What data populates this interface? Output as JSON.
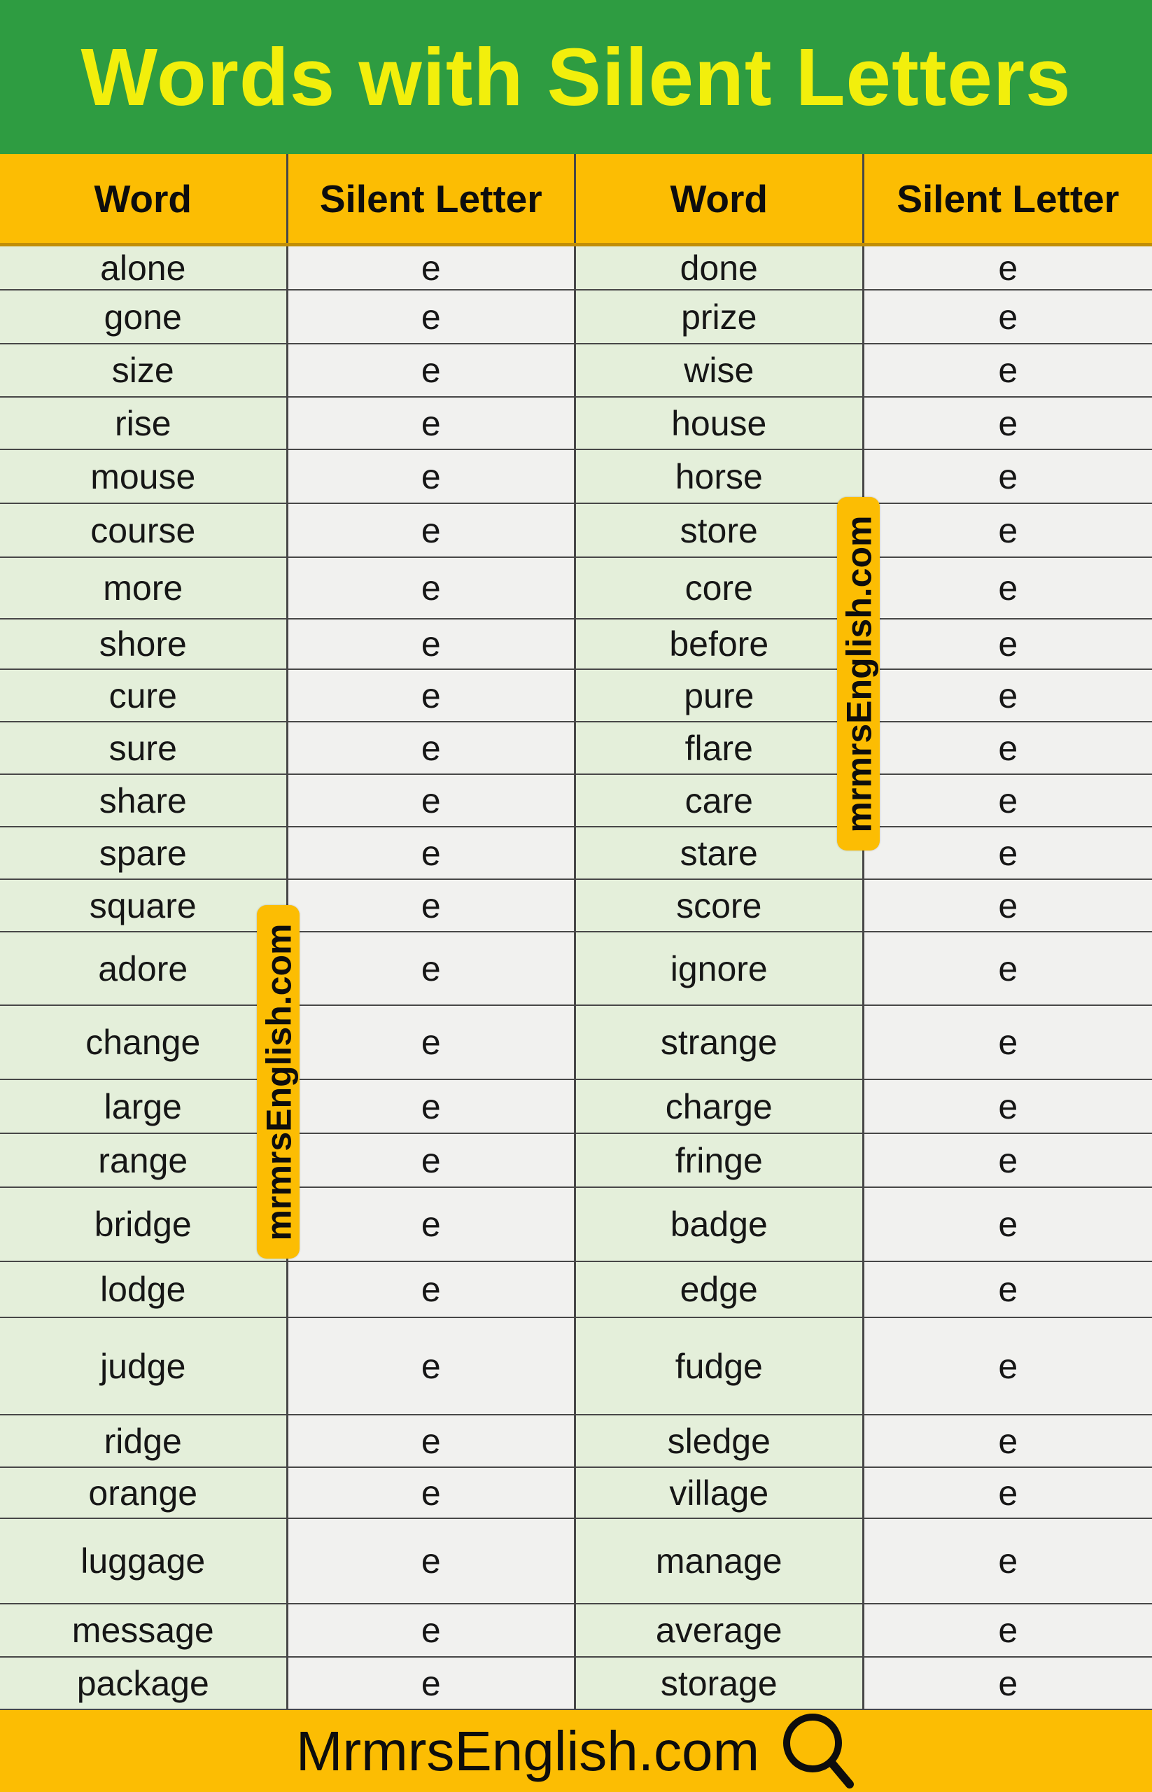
{
  "title": "Words with Silent Letters",
  "table": {
    "columns": [
      "Word",
      "Silent Letter",
      "Word",
      "Silent Letter"
    ],
    "rows": [
      {
        "w1": "alone",
        "s1": "e",
        "w2": "done",
        "s2": "e"
      },
      {
        "w1": "gone",
        "s1": "e",
        "w2": "prize",
        "s2": "e"
      },
      {
        "w1": "size",
        "s1": "e",
        "w2": "wise",
        "s2": "e"
      },
      {
        "w1": "rise",
        "s1": "e",
        "w2": "house",
        "s2": "e"
      },
      {
        "w1": "mouse",
        "s1": "e",
        "w2": "horse",
        "s2": "e"
      },
      {
        "w1": "course",
        "s1": "e",
        "w2": "store",
        "s2": "e"
      },
      {
        "w1": "more",
        "s1": "e",
        "w2": "core",
        "s2": "e"
      },
      {
        "w1": "shore",
        "s1": "e",
        "w2": "before",
        "s2": "e"
      },
      {
        "w1": "cure",
        "s1": "e",
        "w2": "pure",
        "s2": "e"
      },
      {
        "w1": "sure",
        "s1": "e",
        "w2": "flare",
        "s2": "e"
      },
      {
        "w1": "share",
        "s1": "e",
        "w2": "care",
        "s2": "e"
      },
      {
        "w1": "spare",
        "s1": "e",
        "w2": "stare",
        "s2": "e"
      },
      {
        "w1": "square",
        "s1": "e",
        "w2": "score",
        "s2": "e"
      },
      {
        "w1": "adore",
        "s1": "e",
        "w2": "ignore",
        "s2": "e"
      },
      {
        "w1": "change",
        "s1": "e",
        "w2": "strange",
        "s2": "e"
      },
      {
        "w1": "large",
        "s1": "e",
        "w2": "charge",
        "s2": "e"
      },
      {
        "w1": "range",
        "s1": "e",
        "w2": "fringe",
        "s2": "e"
      },
      {
        "w1": "bridge",
        "s1": "e",
        "w2": "badge",
        "s2": "e"
      },
      {
        "w1": "lodge",
        "s1": "e",
        "w2": "edge",
        "s2": "e"
      },
      {
        "w1": "judge",
        "s1": "e",
        "w2": "fudge",
        "s2": "e"
      },
      {
        "w1": "ridge",
        "s1": "e",
        "w2": "sledge",
        "s2": "e"
      },
      {
        "w1": "orange",
        "s1": "e",
        "w2": "village",
        "s2": "e"
      },
      {
        "w1": "luggage",
        "s1": "e",
        "w2": "manage",
        "s2": "e"
      },
      {
        "w1": "message",
        "s1": "e",
        "w2": "average",
        "s2": "e"
      },
      {
        "w1": "package",
        "s1": "e",
        "w2": "storage",
        "s2": "e"
      }
    ]
  },
  "watermark": {
    "text": "mrmrsEnglish.com"
  },
  "footer": {
    "site": "MrmrsEnglish.com",
    "icon": "magnifier-icon"
  },
  "colors": {
    "header_green": "#2E9C41",
    "title_yellow": "#F2EF0C",
    "amber": "#FCBD03",
    "gold_line": "#C18E06",
    "cell_green": "#E4EFDA",
    "cell_gray": "#F1F1EF",
    "border": "#474747"
  }
}
